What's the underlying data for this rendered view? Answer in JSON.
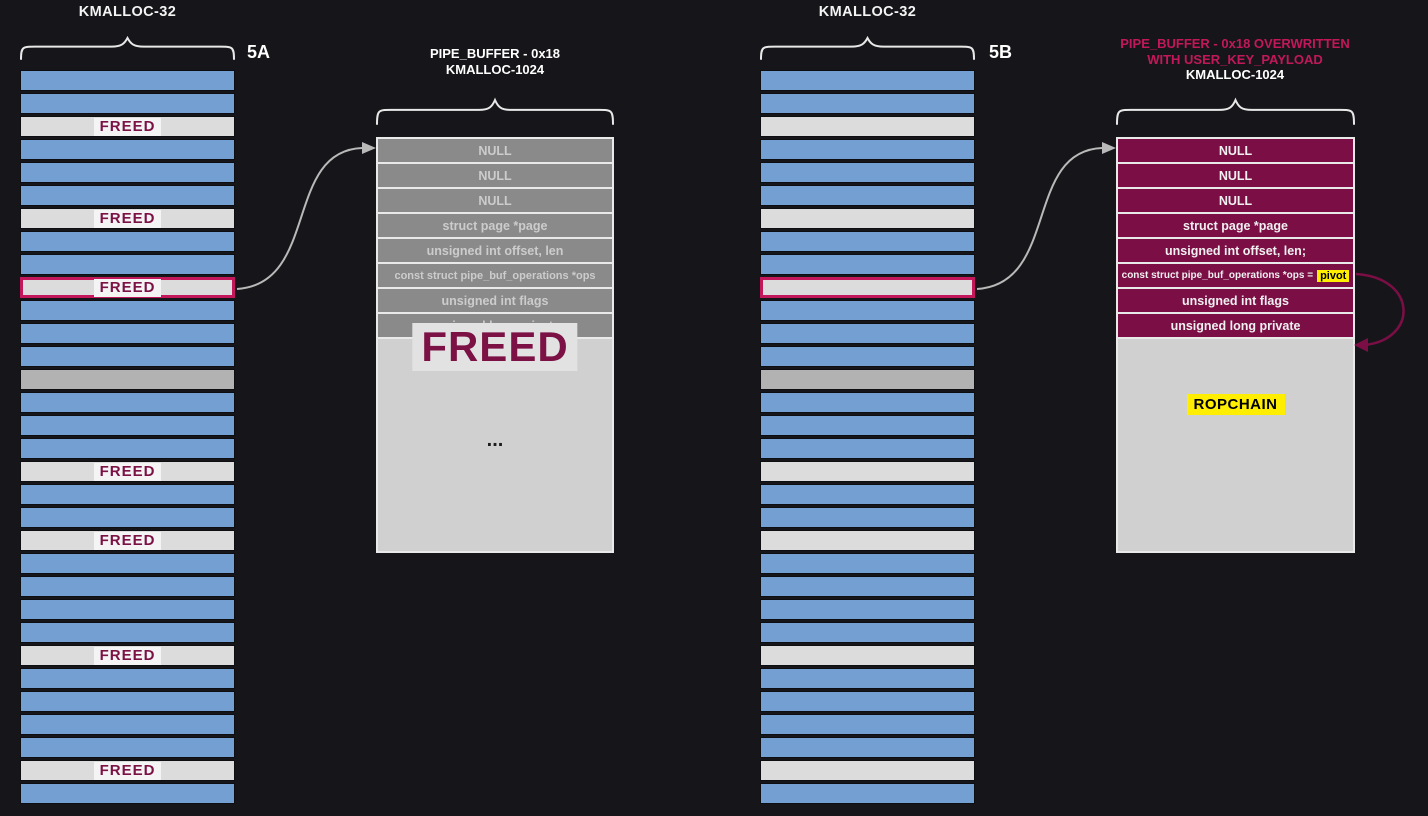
{
  "figure": {
    "freed_label": "FREED",
    "row_codes": {
      "b": "allocated-object",
      "f": "freed-slot-labeled",
      "g": "freed-slot-unlabeled",
      "d": "other-object-gray",
      "F": "freed-slot-target-highlighted",
      "G": "overwritten-slot-target-highlighted"
    },
    "panel_a": {
      "label": "5A",
      "slab_title": "KMALLOC-32",
      "pipe_title": [
        "PIPE_BUFFER - 0x18",
        "KMALLOC-1024"
      ],
      "big_freed": "FREED",
      "ellipsis": "...",
      "pipe_fields": [
        {
          "text": "NULL"
        },
        {
          "text": "NULL"
        },
        {
          "text": "NULL"
        },
        {
          "text": "struct page *page"
        },
        {
          "text": "unsigned int offset, len"
        },
        {
          "text": "const struct pipe_buf_operations *ops",
          "small": true
        },
        {
          "text": "unsigned int flags"
        },
        {
          "text": "unsigned long private"
        }
      ],
      "slab_rows": [
        "b",
        "b",
        "f",
        "b",
        "b",
        "b",
        "f",
        "b",
        "b",
        "F",
        "b",
        "b",
        "b",
        "d",
        "b",
        "b",
        "b",
        "f",
        "b",
        "b",
        "f",
        "b",
        "b",
        "b",
        "b",
        "f",
        "b",
        "b",
        "b",
        "b",
        "f",
        "b"
      ]
    },
    "panel_b": {
      "label": "5B",
      "slab_title": "KMALLOC-32",
      "pipe_title_pink": [
        "PIPE_BUFFER - 0x18 OVERWRITTEN",
        "WITH USER_KEY_PAYLOAD"
      ],
      "pipe_title_white": "KMALLOC-1024",
      "ropchain_label": "ROPCHAIN",
      "pipe_fields": [
        {
          "text": "NULL"
        },
        {
          "text": "NULL"
        },
        {
          "text": "NULL"
        },
        {
          "text": "struct page *page"
        },
        {
          "text": "unsigned int offset, len;"
        },
        {
          "text": "const struct pipe_buf_operations *ops =",
          "highlight": "pivot",
          "small": true
        },
        {
          "text": "unsigned int flags"
        },
        {
          "text": "unsigned long private"
        }
      ],
      "slab_rows": [
        "b",
        "b",
        "g",
        "b",
        "b",
        "b",
        "g",
        "b",
        "b",
        "G",
        "b",
        "b",
        "b",
        "d",
        "b",
        "b",
        "b",
        "g",
        "b",
        "b",
        "g",
        "b",
        "b",
        "b",
        "b",
        "g",
        "b",
        "b",
        "b",
        "b",
        "g",
        "b"
      ]
    },
    "colors": {
      "background": "#16161a",
      "allocated_blue": "#739fd3",
      "freed_gray": "#dcdcdc",
      "other_gray": "#b2b2b2",
      "pipe_field_gray": "#8a8a8a",
      "pipe_body_gray": "#d0d0d0",
      "maroon": "#7b0e45",
      "freed_text_maroon": "#7b1144",
      "accent_pink": "#c2185b",
      "highlight_yellow": "#ffee00",
      "arrow_gray": "#b9b9b9"
    }
  }
}
